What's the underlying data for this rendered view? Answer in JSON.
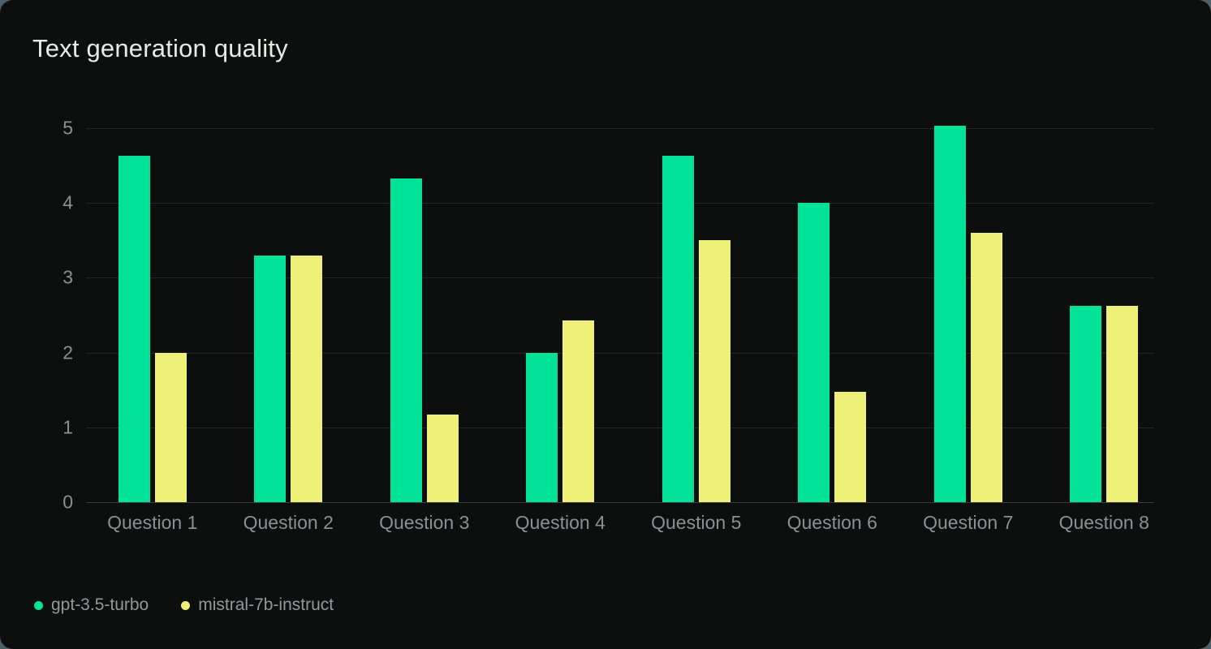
{
  "header": {
    "title": "Text generation quality"
  },
  "theme": {
    "page_background": "#4d5f68",
    "card_background": "#0d0f0e",
    "grid_color": "#232629",
    "axis_line_color": "#3a3d41",
    "axis_text_color": "#8b9096",
    "title_color": "#e8eae8",
    "legend_text_color": "#94979c"
  },
  "chart_data": {
    "type": "bar",
    "title": "Text generation quality",
    "categories": [
      "Question 1",
      "Question 2",
      "Question 3",
      "Question 4",
      "Question 5",
      "Question 6",
      "Question 7",
      "Question 8"
    ],
    "series": [
      {
        "name": "gpt-3.5-turbo",
        "color": "#02e298",
        "values": [
          4.63,
          3.3,
          4.33,
          2.0,
          4.63,
          4.0,
          5.03,
          2.63
        ]
      },
      {
        "name": "mistral-7b-instruct",
        "color": "#eef077",
        "values": [
          2.0,
          3.3,
          1.17,
          2.43,
          3.5,
          1.47,
          3.6,
          2.63
        ]
      }
    ],
    "xlabel": "",
    "ylabel": "",
    "ylim": [
      0,
      5
    ],
    "y_ticks": [
      5,
      4,
      3,
      2,
      1,
      0
    ],
    "grid": true,
    "legend_position": "bottom-left"
  }
}
